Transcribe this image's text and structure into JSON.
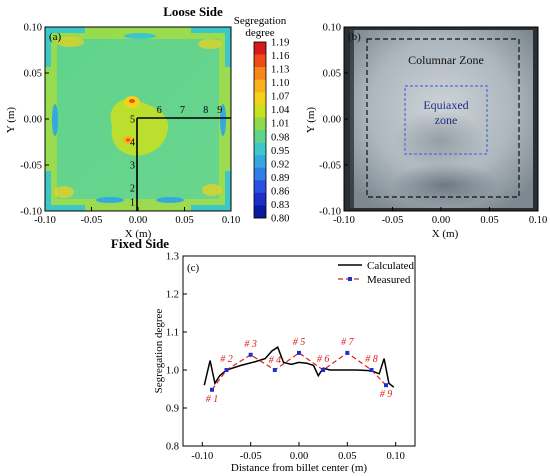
{
  "chart_data": [
    {
      "panel": "(a)",
      "type": "heatmap",
      "title": "Loose Side",
      "subtitle": "Fixed Side",
      "xlabel": "X (m)",
      "ylabel": "Y (m)",
      "xlim": [
        -0.1,
        0.1
      ],
      "ylim": [
        -0.1,
        0.1
      ],
      "x_ticks": [
        "-0.10",
        "-0.05",
        "0.00",
        "0.05",
        "0.10"
      ],
      "y_ticks": [
        "0.10",
        "0.05",
        "0.00",
        "-0.05",
        "-0.10"
      ],
      "colorbar": {
        "title": "Segregation degree",
        "title_lines": [
          "Segregation",
          "degree"
        ],
        "levels": [
          "1.19",
          "1.16",
          "1.13",
          "1.10",
          "1.07",
          "1.04",
          "1.01",
          "0.98",
          "0.95",
          "0.92",
          "0.89",
          "0.86",
          "0.83",
          "0.80"
        ],
        "colors": [
          "#d7191c",
          "#ee4a16",
          "#f7861b",
          "#f9b21e",
          "#f2d21a",
          "#c9e01f",
          "#8fd94a",
          "#5fd48a",
          "#3ec7c8",
          "#33a9e0",
          "#2f7fe6",
          "#2850e0",
          "#1e2fc8",
          "#0c1aa0"
        ]
      },
      "sample_points": [
        {
          "label": "1",
          "x": 0,
          "y": -0.09
        },
        {
          "label": "2",
          "x": 0,
          "y": -0.075
        },
        {
          "label": "3",
          "x": 0,
          "y": -0.05
        },
        {
          "label": "4",
          "x": 0,
          "y": -0.025
        },
        {
          "label": "5",
          "x": 0,
          "y": 0
        },
        {
          "label": "6",
          "x": 0.025,
          "y": 0
        },
        {
          "label": "7",
          "x": 0.05,
          "y": 0
        },
        {
          "label": "8",
          "x": 0.075,
          "y": 0
        },
        {
          "label": "9",
          "x": 0.09,
          "y": 0
        }
      ]
    },
    {
      "panel": "(b)",
      "type": "image",
      "xlabel": "X (m)",
      "ylabel": "Y (m)",
      "xlim": [
        -0.1,
        0.1
      ],
      "ylim": [
        -0.1,
        0.1
      ],
      "x_ticks": [
        "-0.10",
        "-0.05",
        "0.00",
        "0.05",
        "0.10"
      ],
      "y_ticks": [
        "0.10",
        "0.05",
        "0.00",
        "-0.05",
        "-0.10"
      ],
      "annotations": [
        "Columnar Zone",
        "Equiaxed",
        "zone"
      ]
    },
    {
      "panel": "(c)",
      "type": "line",
      "xlabel": "Distance from billet center (m)",
      "ylabel": "Segregation degree",
      "xlim": [
        -0.12,
        0.12
      ],
      "ylim": [
        0.8,
        1.3
      ],
      "x_ticks": [
        -0.1,
        -0.05,
        0.0,
        0.05,
        0.1
      ],
      "x_tick_labels": [
        "-0.10",
        "-0.05",
        "0.00",
        "0.05",
        "0.10"
      ],
      "y_ticks": [
        0.8,
        0.9,
        1.0,
        1.1,
        1.2,
        1.3
      ],
      "y_tick_labels": [
        "0.8",
        "0.9",
        "1.0",
        "1.1",
        "1.2",
        "1.3"
      ],
      "legend_position": "top-right",
      "series": [
        {
          "name": "Calculated",
          "style": "solid",
          "color": "#000000",
          "x": [
            -0.098,
            -0.092,
            -0.087,
            -0.082,
            -0.075,
            -0.06,
            -0.045,
            -0.035,
            -0.028,
            -0.022,
            -0.016,
            -0.008,
            0.0,
            0.008,
            0.015,
            0.02,
            0.025,
            0.032,
            0.045,
            0.06,
            0.075,
            0.083,
            0.088,
            0.093,
            0.098
          ],
          "y": [
            0.96,
            1.025,
            0.965,
            0.985,
            1.0,
            1.012,
            1.022,
            1.03,
            1.05,
            1.06,
            1.02,
            1.015,
            1.02,
            1.018,
            1.012,
            0.985,
            1.005,
            1.0,
            1.0,
            1.0,
            0.998,
            0.99,
            1.03,
            0.965,
            0.955
          ]
        },
        {
          "name": "Measured",
          "style": "dashed",
          "color": "#e01b1b",
          "marker_color": "#1f2fd0",
          "x": [
            -0.09,
            -0.075,
            -0.05,
            -0.025,
            0.0,
            0.025,
            0.05,
            0.075,
            0.09
          ],
          "y": [
            0.948,
            1.0,
            1.04,
            1.0,
            1.045,
            1.0,
            1.045,
            1.0,
            0.96
          ]
        }
      ],
      "point_labels": [
        "# 1",
        "# 2",
        "# 3",
        "# 4",
        "# 5",
        "# 6",
        "# 7",
        "# 8",
        "# 9"
      ]
    }
  ]
}
